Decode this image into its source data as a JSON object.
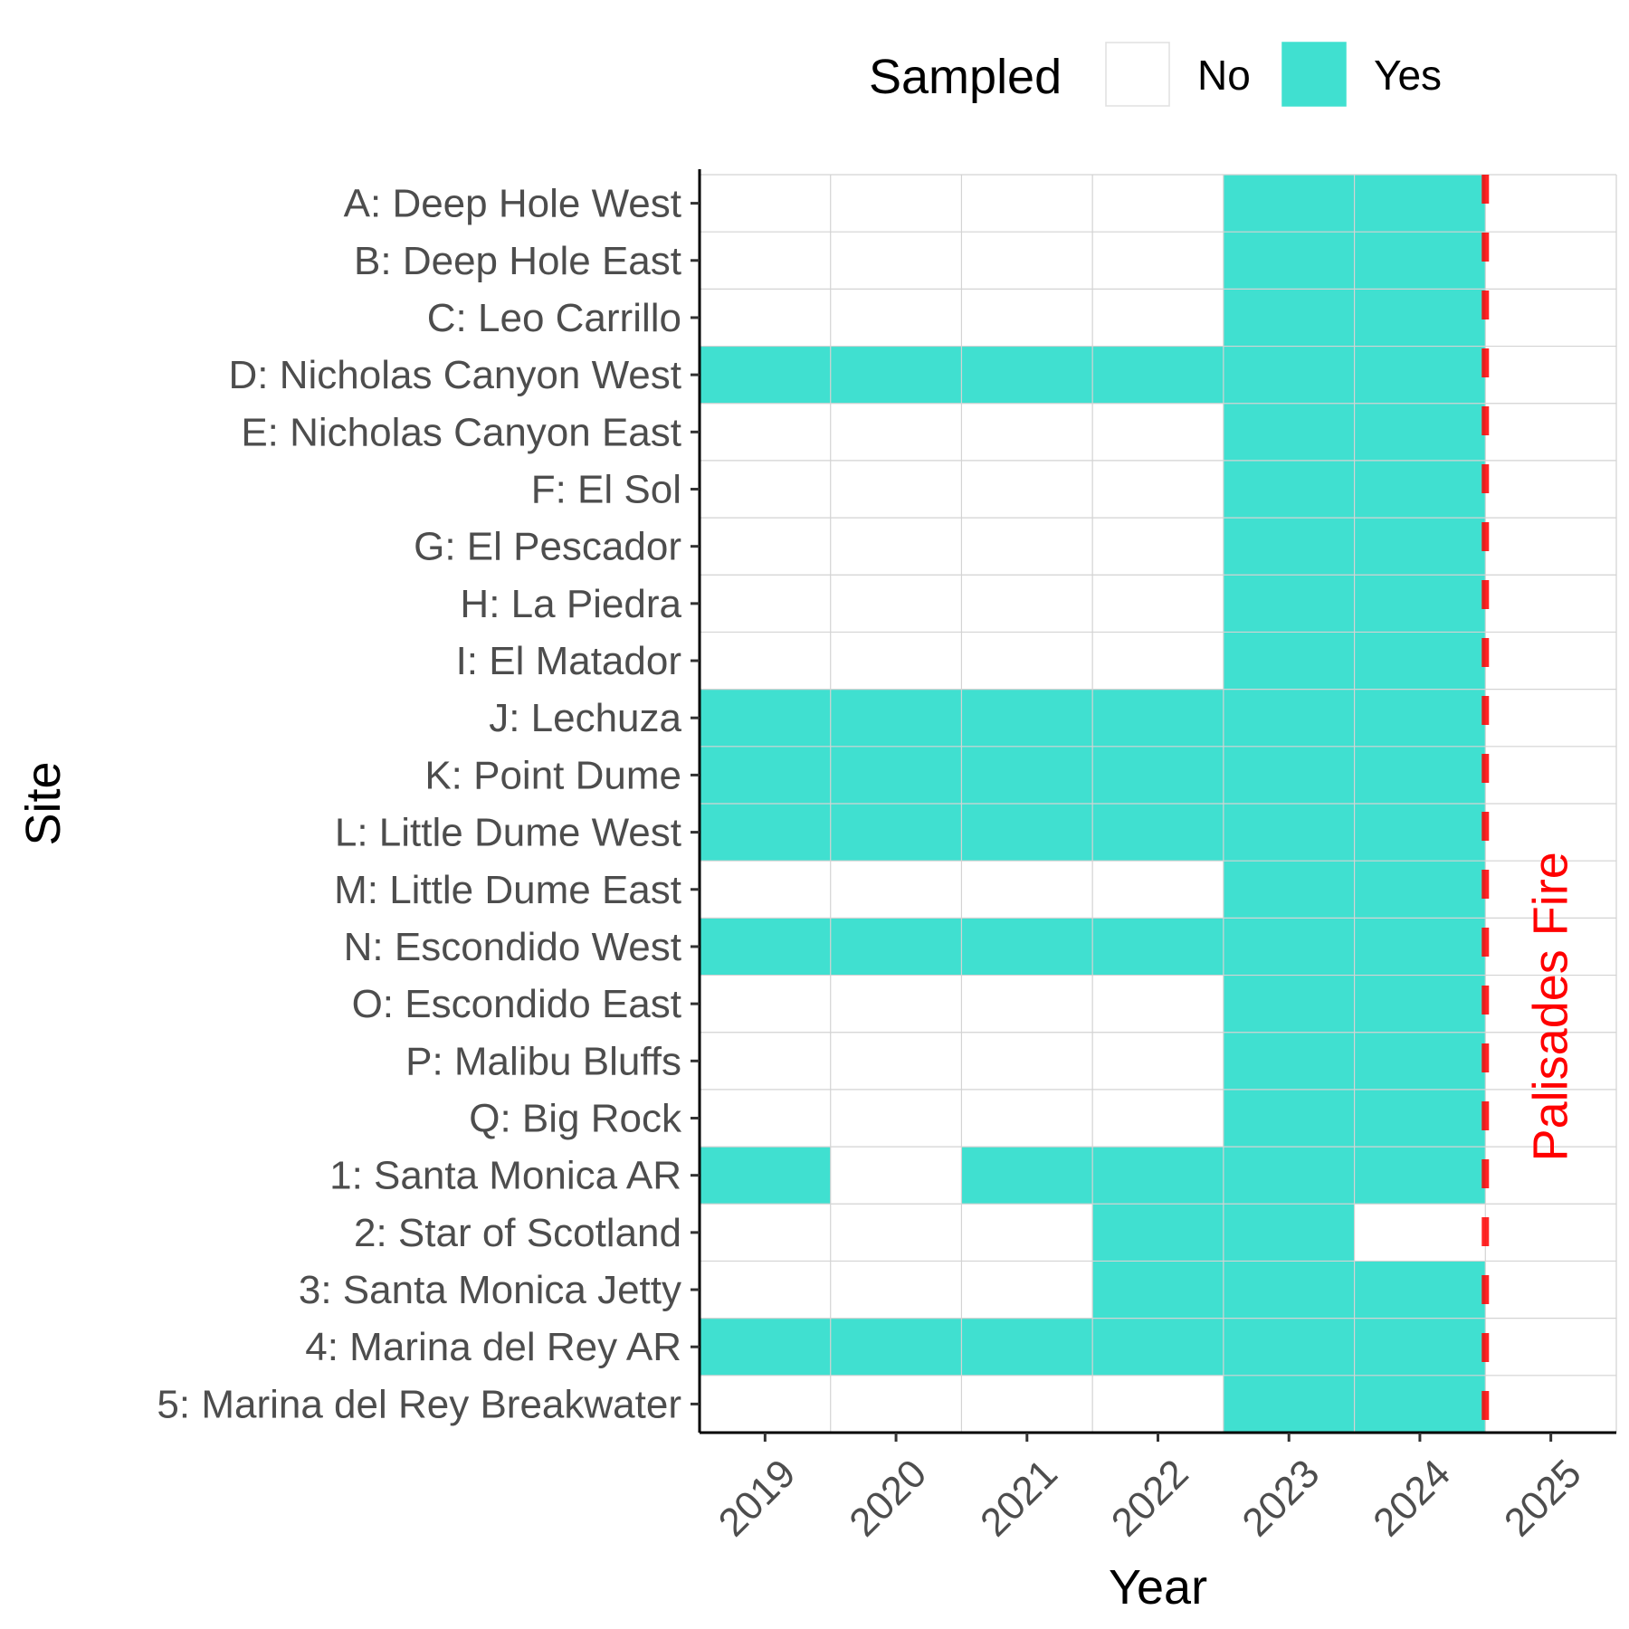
{
  "chart_data": {
    "type": "heatmap",
    "title": "",
    "xlabel": "Year",
    "ylabel": "Site",
    "x": [
      "2019",
      "2020",
      "2021",
      "2022",
      "2023",
      "2024",
      "2025"
    ],
    "sites": [
      "A: Deep Hole West",
      "B: Deep Hole East",
      "C: Leo Carrillo",
      "D: Nicholas Canyon West",
      "E: Nicholas Canyon East",
      "F: El Sol",
      "G: El Pescador",
      "H: La Piedra",
      "I: El Matador",
      "J: Lechuza",
      "K: Point Dume",
      "L: Little Dume West",
      "M: Little Dume East",
      "N: Escondido West",
      "O: Escondido East",
      "P: Malibu Bluffs",
      "Q: Big Rock",
      "1: Santa Monica AR",
      "2: Star of Scotland",
      "3: Santa Monica Jetty",
      "4: Marina del Rey AR",
      "5: Marina del Rey Breakwater"
    ],
    "sampled": [
      [
        0,
        0,
        0,
        0,
        1,
        1,
        0
      ],
      [
        0,
        0,
        0,
        0,
        1,
        1,
        0
      ],
      [
        0,
        0,
        0,
        0,
        1,
        1,
        0
      ],
      [
        1,
        1,
        1,
        1,
        1,
        1,
        0
      ],
      [
        0,
        0,
        0,
        0,
        1,
        1,
        0
      ],
      [
        0,
        0,
        0,
        0,
        1,
        1,
        0
      ],
      [
        0,
        0,
        0,
        0,
        1,
        1,
        0
      ],
      [
        0,
        0,
        0,
        0,
        1,
        1,
        0
      ],
      [
        0,
        0,
        0,
        0,
        1,
        1,
        0
      ],
      [
        1,
        1,
        1,
        1,
        1,
        1,
        0
      ],
      [
        1,
        1,
        1,
        1,
        1,
        1,
        0
      ],
      [
        1,
        1,
        1,
        1,
        1,
        1,
        0
      ],
      [
        0,
        0,
        0,
        0,
        1,
        1,
        0
      ],
      [
        1,
        1,
        1,
        1,
        1,
        1,
        0
      ],
      [
        0,
        0,
        0,
        0,
        1,
        1,
        0
      ],
      [
        0,
        0,
        0,
        0,
        1,
        1,
        0
      ],
      [
        0,
        0,
        0,
        0,
        1,
        1,
        0
      ],
      [
        1,
        0,
        1,
        1,
        1,
        1,
        0
      ],
      [
        0,
        0,
        0,
        1,
        1,
        0,
        0
      ],
      [
        0,
        0,
        0,
        1,
        1,
        1,
        0
      ],
      [
        1,
        1,
        1,
        1,
        1,
        1,
        0
      ],
      [
        0,
        0,
        0,
        0,
        1,
        1,
        0
      ]
    ],
    "legend": {
      "title": "Sampled",
      "position": "top",
      "entries": [
        {
          "label": "No",
          "color": "#ffffff"
        },
        {
          "label": "Yes",
          "color": "#40e0d0"
        }
      ]
    },
    "event_line": {
      "x": 2024.5,
      "label": "Palisades Fire",
      "color": "#ff0000",
      "style": "dashed"
    },
    "grid": true
  }
}
